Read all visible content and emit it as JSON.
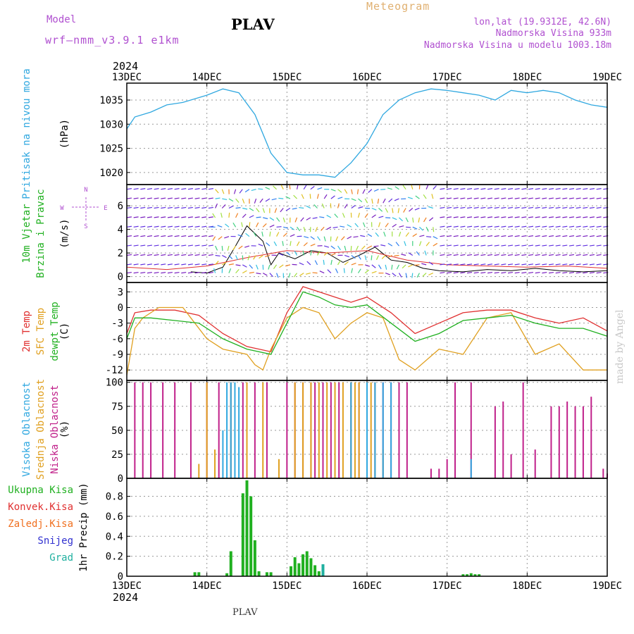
{
  "header": {
    "model_label": "Model",
    "model_name": "wrf—nmm_v3.9.1  e1km",
    "title": "PLAV",
    "meteogram_label": "Meteogram",
    "coords": "lon,lat (19.9312E, 42.6N)",
    "elevation": "Nadmorska Visina 933m",
    "elevation_model": "Nadmorska Visina u modelu 1003.18m",
    "colors": {
      "model": "#b050d0",
      "meteogram": "#e0b070"
    }
  },
  "footer": {
    "station": "PLAV"
  },
  "watermark": "made by Angel",
  "time_axis": {
    "year_top": "2024",
    "year_bottom": "2024",
    "ticks": [
      "13DEC",
      "14DEC",
      "15DEC",
      "16DEC",
      "17DEC",
      "18DEC",
      "19DEC"
    ]
  },
  "chart_data": [
    {
      "type": "line",
      "id": "pressure",
      "ylabel_lines": [
        {
          "text": "Pritisak na nivou mora",
          "color": "#30a8e0"
        },
        {
          "text": "(hPa)",
          "color": "#000000"
        }
      ],
      "ylim": [
        1017.5,
        1038.5
      ],
      "yticks": [
        1020,
        1025,
        1030,
        1035
      ],
      "grid": true,
      "series": [
        {
          "color": "#30a8e0",
          "x": [
            0,
            0.1,
            0.3,
            0.5,
            0.7,
            1.0,
            1.2,
            1.4,
            1.6,
            1.8,
            2.0,
            2.2,
            2.4,
            2.6,
            2.8,
            3.0,
            3.2,
            3.4,
            3.6,
            3.8,
            4.0,
            4.2,
            4.4,
            4.6,
            4.8,
            5.0,
            5.2,
            5.4,
            5.6,
            5.8,
            6.0
          ],
          "y": [
            1029,
            1031.5,
            1032.5,
            1034,
            1034.5,
            1036,
            1037.3,
            1036.5,
            1032,
            1024,
            1020,
            1019.5,
            1019.5,
            1019,
            1022,
            1026,
            1032,
            1035,
            1036.5,
            1037.3,
            1037,
            1036.5,
            1036,
            1035,
            1037,
            1036.5,
            1037,
            1036.5,
            1035,
            1034,
            1033.5
          ]
        }
      ]
    },
    {
      "type": "scatter",
      "id": "wind",
      "ylabel_lines": [
        {
          "text": "10m Vjetar",
          "color": "#20b020"
        },
        {
          "text": "Brzina i Pravac",
          "color": "#20b020"
        },
        {
          "text": "(m/s)",
          "color": "#000000"
        }
      ],
      "compass_labels": {
        "w": "W",
        "e": "E",
        "n": "N",
        "s": "S"
      },
      "ylim": [
        -0.5,
        7.8
      ],
      "yticks": [
        0,
        2,
        4,
        6
      ],
      "grid": true,
      "series": [
        {
          "color": "#000000",
          "x": [
            0.8,
            1.0,
            1.2,
            1.35,
            1.5,
            1.7,
            1.8,
            1.9,
            2.1,
            2.3,
            2.5,
            2.7,
            2.9,
            3.1,
            3.3,
            3.5,
            3.7,
            3.9,
            4.2,
            4.5,
            4.8,
            5.1,
            5.4,
            5.7,
            6.0
          ],
          "y": [
            0.4,
            0.3,
            0.8,
            2.5,
            4.3,
            3.0,
            1.0,
            2.0,
            1.5,
            2.2,
            2.0,
            1.2,
            1.8,
            2.5,
            1.4,
            1.2,
            0.7,
            0.5,
            0.4,
            0.6,
            0.5,
            0.7,
            0.5,
            0.4,
            0.5
          ]
        },
        {
          "color": "#e03030",
          "x": [
            0,
            0.5,
            1.0,
            1.5,
            2.0,
            2.5,
            3.0,
            3.5,
            4.0,
            4.5,
            5.0,
            5.5,
            6.0
          ],
          "y": [
            0.8,
            0.6,
            0.9,
            1.6,
            2.2,
            2.0,
            2.2,
            1.4,
            1.0,
            0.9,
            0.8,
            0.9,
            0.7
          ]
        }
      ]
    },
    {
      "type": "line",
      "id": "temperature",
      "ylabel_lines": [
        {
          "text": "2m Temp",
          "color": "#e03030"
        },
        {
          "text": "SFC Temp",
          "color": "#e0a020"
        },
        {
          "text": "dewpt Temp",
          "color": "#20b020"
        },
        {
          "text": "(C)",
          "color": "#000000"
        }
      ],
      "ylim": [
        -14,
        4.8
      ],
      "yticks": [
        -12,
        -9,
        -6,
        -3,
        0,
        3
      ],
      "grid": true,
      "series": [
        {
          "name": "2m Temp",
          "color": "#e03030",
          "x": [
            0,
            0.1,
            0.3,
            0.6,
            0.9,
            1.2,
            1.5,
            1.8,
            2.0,
            2.2,
            2.4,
            2.6,
            2.8,
            3.0,
            3.3,
            3.6,
            3.9,
            4.2,
            4.5,
            4.8,
            5.1,
            5.4,
            5.7,
            6.0
          ],
          "y": [
            -5,
            -1,
            -0.5,
            -0.5,
            -1.5,
            -5,
            -7.5,
            -8.5,
            -1,
            4,
            3,
            2,
            1,
            2,
            -1,
            -5,
            -3,
            -1,
            -0.5,
            -0.5,
            -2,
            -3,
            -2,
            -4.5
          ]
        },
        {
          "name": "SFC Temp",
          "color": "#e0a020",
          "x": [
            0,
            0.1,
            0.2,
            0.4,
            0.5,
            0.7,
            0.8,
            1.0,
            1.2,
            1.5,
            1.6,
            1.7,
            1.8,
            2.0,
            2.2,
            2.4,
            2.6,
            2.8,
            3.0,
            3.2,
            3.4,
            3.6,
            3.9,
            4.2,
            4.5,
            4.8,
            5.1,
            5.4,
            5.7,
            6.0
          ],
          "y": [
            -13,
            -4,
            -2,
            0,
            0,
            0,
            -2,
            -6,
            -8,
            -9,
            -11,
            -12,
            -8,
            -2,
            0,
            -1,
            -6,
            -3,
            -1,
            -2,
            -10,
            -12,
            -8,
            -9,
            -2,
            -1,
            -9,
            -7,
            -12,
            -12
          ]
        },
        {
          "name": "dewpt Temp",
          "color": "#20b020",
          "x": [
            0,
            0.1,
            0.3,
            0.6,
            0.9,
            1.2,
            1.5,
            1.8,
            2.0,
            2.2,
            2.4,
            2.6,
            2.8,
            3.0,
            3.3,
            3.6,
            3.9,
            4.2,
            4.5,
            4.8,
            5.1,
            5.4,
            5.7,
            6.0
          ],
          "y": [
            -6,
            -2,
            -2,
            -2.5,
            -3,
            -6,
            -8,
            -9,
            -3,
            3,
            2,
            0.5,
            0,
            0.5,
            -3,
            -6.5,
            -5,
            -2.5,
            -2,
            -1.5,
            -3,
            -4,
            -4,
            -5.5
          ]
        }
      ]
    },
    {
      "type": "bar",
      "id": "clouds",
      "ylabel_lines": [
        {
          "text": "Visoka Oblacnost",
          "color": "#30a8e0"
        },
        {
          "text": "Srednja Oblacnost",
          "color": "#e0a020"
        },
        {
          "text": "Niska Oblacnost",
          "color": "#c0208a"
        },
        {
          "text": "(%)",
          "color": "#000000"
        }
      ],
      "ylim": [
        0,
        102
      ],
      "yticks": [
        0,
        25,
        50,
        75,
        100
      ],
      "grid": true,
      "series": [
        {
          "name": "Niska Oblacnost",
          "color": "#c0208a",
          "x": [
            0.1,
            0.2,
            0.3,
            0.45,
            0.6,
            0.8,
            1.0,
            1.15,
            1.3,
            1.45,
            1.6,
            1.75,
            2.0,
            2.1,
            2.2,
            2.3,
            2.35,
            2.45,
            2.55,
            2.65,
            2.8,
            2.9,
            3.0,
            3.1,
            3.2,
            3.3,
            3.4,
            3.5,
            3.8,
            3.9,
            4.0,
            4.1,
            4.3,
            4.6,
            4.7,
            4.8,
            4.95,
            5.1,
            5.3,
            5.4,
            5.5,
            5.6,
            5.7,
            5.8,
            5.95,
            6.0
          ],
          "y": [
            100,
            100,
            100,
            100,
            100,
            100,
            100,
            100,
            100,
            100,
            100,
            100,
            100,
            100,
            100,
            100,
            100,
            100,
            100,
            100,
            100,
            100,
            100,
            100,
            100,
            100,
            100,
            100,
            10,
            10,
            20,
            100,
            100,
            75,
            80,
            25,
            100,
            30,
            75,
            75,
            80,
            75,
            75,
            85,
            10,
            5
          ]
        },
        {
          "name": "Srednja Oblacnost",
          "color": "#e0a020",
          "x": [
            0.9,
            1.0,
            1.1,
            1.3,
            1.5,
            1.7,
            1.9,
            2.1,
            2.2,
            2.3,
            2.4,
            2.5,
            2.6,
            2.7,
            2.8,
            2.85,
            2.9,
            3.0,
            3.05,
            3.1,
            3.2
          ],
          "y": [
            15,
            100,
            30,
            100,
            100,
            100,
            20,
            100,
            100,
            100,
            100,
            100,
            100,
            100,
            100,
            100,
            100,
            100,
            100,
            100,
            30
          ]
        },
        {
          "name": "Visoka Oblacnost",
          "color": "#30a8e0",
          "x": [
            1.2,
            1.25,
            1.3,
            1.35,
            1.4,
            2.8,
            3.0,
            3.1,
            3.2,
            3.3,
            4.3
          ],
          "y": [
            50,
            100,
            100,
            100,
            95,
            100,
            100,
            100,
            100,
            100,
            20
          ]
        }
      ]
    },
    {
      "type": "bar",
      "id": "precip",
      "ylabel_lines": [
        {
          "text": "1hr Precip (mm)",
          "color": "#000000"
        }
      ],
      "legend": [
        {
          "text": "Ukupna Kisa",
          "color": "#20b020"
        },
        {
          "text": "Konvek.Kisa",
          "color": "#e03030"
        },
        {
          "text": "Zaledj.Kisa",
          "color": "#f07020"
        },
        {
          "text": "Snijeg",
          "color": "#3030d0"
        },
        {
          "text": "Grad",
          "color": "#20b0a0"
        }
      ],
      "ylim": [
        0,
        0.98
      ],
      "yticks": [
        0,
        0.2,
        0.4,
        0.6,
        0.8
      ],
      "grid": true,
      "series": [
        {
          "name": "Ukupna Kisa",
          "color": "#20b020",
          "x": [
            0.85,
            0.9,
            1.25,
            1.3,
            1.45,
            1.5,
            1.55,
            1.6,
            1.65,
            1.75,
            1.8,
            2.05,
            2.1,
            2.15,
            2.2,
            2.25,
            2.3,
            2.35,
            2.4,
            4.2,
            4.25,
            4.3,
            4.35,
            4.4
          ],
          "y": [
            0.04,
            0.04,
            0.03,
            0.25,
            0.83,
            0.96,
            0.8,
            0.36,
            0.05,
            0.04,
            0.04,
            0.1,
            0.19,
            0.13,
            0.22,
            0.25,
            0.18,
            0.11,
            0.05,
            0.02,
            0.02,
            0.03,
            0.02,
            0.02
          ]
        },
        {
          "name": "Grad",
          "color": "#20b0a0",
          "x": [
            2.45
          ],
          "y": [
            0.12
          ]
        }
      ]
    }
  ]
}
